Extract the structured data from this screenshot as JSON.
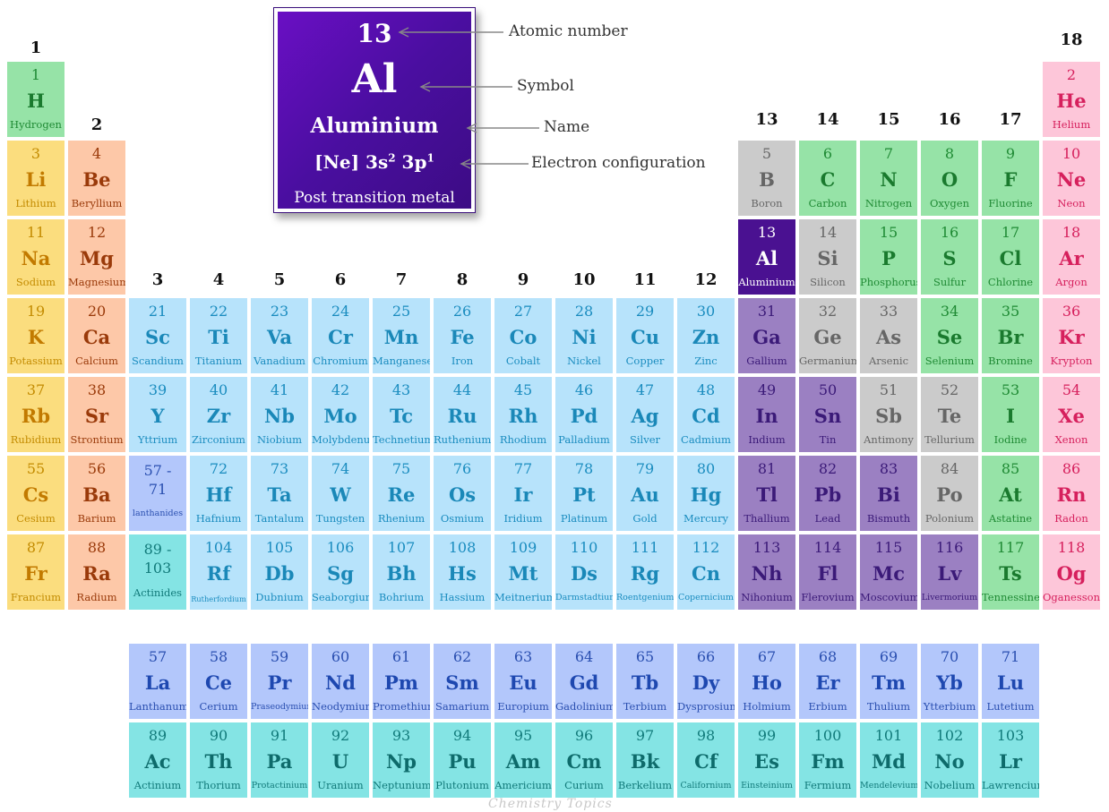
{
  "legend": {
    "number": "13",
    "symbol": "Al",
    "name": "Aluminium",
    "configuration_base": "[Ne] 3s",
    "configuration_sup1": "2",
    "configuration_mid": " 3p",
    "configuration_sup2": "1",
    "category": "Post transition metal",
    "callouts": {
      "number": "Atomic number",
      "symbol": "Symbol",
      "name": "Name",
      "configuration": "Electron configuration"
    }
  },
  "groups": [
    "1",
    "2",
    "3",
    "4",
    "5",
    "6",
    "7",
    "8",
    "9",
    "10",
    "11",
    "12",
    "13",
    "14",
    "15",
    "16",
    "17",
    "18"
  ],
  "watermark": "Chemistry Topics",
  "elements": [
    {
      "n": "1",
      "s": "H",
      "name": "Hydrogen",
      "c": "hydrogen",
      "col": 1,
      "row": 1
    },
    {
      "n": "2",
      "s": "He",
      "name": "Helium",
      "c": "noble",
      "col": 18,
      "row": 1
    },
    {
      "n": "3",
      "s": "Li",
      "name": "Lithium",
      "c": "alkali",
      "col": 1,
      "row": 2
    },
    {
      "n": "4",
      "s": "Be",
      "name": "Beryllium",
      "c": "alkaline",
      "col": 2,
      "row": 2
    },
    {
      "n": "5",
      "s": "B",
      "name": "Boron",
      "c": "metalloid",
      "col": 13,
      "row": 2
    },
    {
      "n": "6",
      "s": "C",
      "name": "Carbon",
      "c": "nonmetal",
      "col": 14,
      "row": 2
    },
    {
      "n": "7",
      "s": "N",
      "name": "Nitrogen",
      "c": "nonmetal",
      "col": 15,
      "row": 2
    },
    {
      "n": "8",
      "s": "O",
      "name": "Oxygen",
      "c": "nonmetal",
      "col": 16,
      "row": 2
    },
    {
      "n": "9",
      "s": "F",
      "name": "Fluorine",
      "c": "halogen",
      "col": 17,
      "row": 2
    },
    {
      "n": "10",
      "s": "Ne",
      "name": "Neon",
      "c": "noble",
      "col": 18,
      "row": 2
    },
    {
      "n": "11",
      "s": "Na",
      "name": "Sodium",
      "c": "alkali",
      "col": 1,
      "row": 3
    },
    {
      "n": "12",
      "s": "Mg",
      "name": "Magnesium",
      "c": "alkaline",
      "col": 2,
      "row": 3
    },
    {
      "n": "13",
      "s": "Al",
      "name": "Aluminium",
      "c": "highlight",
      "col": 13,
      "row": 3
    },
    {
      "n": "14",
      "s": "Si",
      "name": "Silicon",
      "c": "metalloid",
      "col": 14,
      "row": 3
    },
    {
      "n": "15",
      "s": "P",
      "name": "Phosphorus",
      "c": "nonmetal",
      "col": 15,
      "row": 3
    },
    {
      "n": "16",
      "s": "S",
      "name": "Sulfur",
      "c": "nonmetal",
      "col": 16,
      "row": 3
    },
    {
      "n": "17",
      "s": "Cl",
      "name": "Chlorine",
      "c": "halogen",
      "col": 17,
      "row": 3
    },
    {
      "n": "18",
      "s": "Ar",
      "name": "Argon",
      "c": "noble",
      "col": 18,
      "row": 3
    },
    {
      "n": "19",
      "s": "K",
      "name": "Potassium",
      "c": "alkali",
      "col": 1,
      "row": 4
    },
    {
      "n": "20",
      "s": "Ca",
      "name": "Calcium",
      "c": "alkaline",
      "col": 2,
      "row": 4
    },
    {
      "n": "21",
      "s": "Sc",
      "name": "Scandium",
      "c": "transition",
      "col": 3,
      "row": 4
    },
    {
      "n": "22",
      "s": "Ti",
      "name": "Titanium",
      "c": "transition",
      "col": 4,
      "row": 4
    },
    {
      "n": "23",
      "s": "Va",
      "name": "Vanadium",
      "c": "transition",
      "col": 5,
      "row": 4
    },
    {
      "n": "24",
      "s": "Cr",
      "name": "Chromium",
      "c": "transition",
      "col": 6,
      "row": 4
    },
    {
      "n": "25",
      "s": "Mn",
      "name": "Manganese",
      "c": "transition",
      "col": 7,
      "row": 4
    },
    {
      "n": "26",
      "s": "Fe",
      "name": "Iron",
      "c": "transition",
      "col": 8,
      "row": 4
    },
    {
      "n": "27",
      "s": "Co",
      "name": "Cobalt",
      "c": "transition",
      "col": 9,
      "row": 4
    },
    {
      "n": "28",
      "s": "Ni",
      "name": "Nickel",
      "c": "transition",
      "col": 10,
      "row": 4
    },
    {
      "n": "29",
      "s": "Cu",
      "name": "Copper",
      "c": "transition",
      "col": 11,
      "row": 4
    },
    {
      "n": "30",
      "s": "Zn",
      "name": "Zinc",
      "c": "transition",
      "col": 12,
      "row": 4
    },
    {
      "n": "31",
      "s": "Ga",
      "name": "Gallium",
      "c": "post",
      "col": 13,
      "row": 4
    },
    {
      "n": "32",
      "s": "Ge",
      "name": "Germanium",
      "c": "metalloid",
      "col": 14,
      "row": 4
    },
    {
      "n": "33",
      "s": "As",
      "name": "Arsenic",
      "c": "metalloid",
      "col": 15,
      "row": 4
    },
    {
      "n": "34",
      "s": "Se",
      "name": "Selenium",
      "c": "nonmetal",
      "col": 16,
      "row": 4
    },
    {
      "n": "35",
      "s": "Br",
      "name": "Bromine",
      "c": "halogen",
      "col": 17,
      "row": 4
    },
    {
      "n": "36",
      "s": "Kr",
      "name": "Krypton",
      "c": "noble",
      "col": 18,
      "row": 4
    },
    {
      "n": "37",
      "s": "Rb",
      "name": "Rubidium",
      "c": "alkali",
      "col": 1,
      "row": 5
    },
    {
      "n": "38",
      "s": "Sr",
      "name": "Strontium",
      "c": "alkaline",
      "col": 2,
      "row": 5
    },
    {
      "n": "39",
      "s": "Y",
      "name": "Yttrium",
      "c": "transition",
      "col": 3,
      "row": 5
    },
    {
      "n": "40",
      "s": "Zr",
      "name": "Zirconium",
      "c": "transition",
      "col": 4,
      "row": 5
    },
    {
      "n": "41",
      "s": "Nb",
      "name": "Niobium",
      "c": "transition",
      "col": 5,
      "row": 5
    },
    {
      "n": "42",
      "s": "Mo",
      "name": "Molybdenum",
      "c": "transition",
      "col": 6,
      "row": 5
    },
    {
      "n": "43",
      "s": "Tc",
      "name": "Technetium",
      "c": "transition",
      "col": 7,
      "row": 5
    },
    {
      "n": "44",
      "s": "Ru",
      "name": "Ruthenium",
      "c": "transition",
      "col": 8,
      "row": 5
    },
    {
      "n": "45",
      "s": "Rh",
      "name": "Rhodium",
      "c": "transition",
      "col": 9,
      "row": 5
    },
    {
      "n": "46",
      "s": "Pd",
      "name": "Palladium",
      "c": "transition",
      "col": 10,
      "row": 5
    },
    {
      "n": "47",
      "s": "Ag",
      "name": "Silver",
      "c": "transition",
      "col": 11,
      "row": 5
    },
    {
      "n": "48",
      "s": "Cd",
      "name": "Cadmium",
      "c": "transition",
      "col": 12,
      "row": 5
    },
    {
      "n": "49",
      "s": "In",
      "name": "Indium",
      "c": "post",
      "col": 13,
      "row": 5
    },
    {
      "n": "50",
      "s": "Sn",
      "name": "Tin",
      "c": "post",
      "col": 14,
      "row": 5
    },
    {
      "n": "51",
      "s": "Sb",
      "name": "Antimony",
      "c": "metalloid",
      "col": 15,
      "row": 5
    },
    {
      "n": "52",
      "s": "Te",
      "name": "Tellurium",
      "c": "metalloid",
      "col": 16,
      "row": 5
    },
    {
      "n": "53",
      "s": "I",
      "name": "Iodine",
      "c": "halogen",
      "col": 17,
      "row": 5
    },
    {
      "n": "54",
      "s": "Xe",
      "name": "Xenon",
      "c": "noble",
      "col": 18,
      "row": 5
    },
    {
      "n": "55",
      "s": "Cs",
      "name": "Cesium",
      "c": "alkali",
      "col": 1,
      "row": 6
    },
    {
      "n": "56",
      "s": "Ba",
      "name": "Barium",
      "c": "alkaline",
      "col": 2,
      "row": 6
    },
    {
      "n": "57 -\n71",
      "s": "",
      "name": "lanthanides",
      "c": "lanthanide",
      "col": 3,
      "row": 6,
      "range": true
    },
    {
      "n": "72",
      "s": "Hf",
      "name": "Hafnium",
      "c": "transition",
      "col": 4,
      "row": 6
    },
    {
      "n": "73",
      "s": "Ta",
      "name": "Tantalum",
      "c": "transition",
      "col": 5,
      "row": 6
    },
    {
      "n": "74",
      "s": "W",
      "name": "Tungsten",
      "c": "transition",
      "col": 6,
      "row": 6
    },
    {
      "n": "75",
      "s": "Re",
      "name": "Rhenium",
      "c": "transition",
      "col": 7,
      "row": 6
    },
    {
      "n": "76",
      "s": "Os",
      "name": "Osmium",
      "c": "transition",
      "col": 8,
      "row": 6
    },
    {
      "n": "77",
      "s": "Ir",
      "name": "Iridium",
      "c": "transition",
      "col": 9,
      "row": 6
    },
    {
      "n": "78",
      "s": "Pt",
      "name": "Platinum",
      "c": "transition",
      "col": 10,
      "row": 6
    },
    {
      "n": "79",
      "s": "Au",
      "name": "Gold",
      "c": "transition",
      "col": 11,
      "row": 6
    },
    {
      "n": "80",
      "s": "Hg",
      "name": "Mercury",
      "c": "transition",
      "col": 12,
      "row": 6
    },
    {
      "n": "81",
      "s": "Tl",
      "name": "Thallium",
      "c": "post",
      "col": 13,
      "row": 6
    },
    {
      "n": "82",
      "s": "Pb",
      "name": "Lead",
      "c": "post",
      "col": 14,
      "row": 6
    },
    {
      "n": "83",
      "s": "Bi",
      "name": "Bismuth",
      "c": "post",
      "col": 15,
      "row": 6
    },
    {
      "n": "84",
      "s": "Po",
      "name": "Polonium",
      "c": "metalloid",
      "col": 16,
      "row": 6
    },
    {
      "n": "85",
      "s": "At",
      "name": "Astatine",
      "c": "halogen",
      "col": 17,
      "row": 6
    },
    {
      "n": "86",
      "s": "Rn",
      "name": "Radon",
      "c": "noble",
      "col": 18,
      "row": 6
    },
    {
      "n": "87",
      "s": "Fr",
      "name": "Francium",
      "c": "alkali",
      "col": 1,
      "row": 7
    },
    {
      "n": "88",
      "s": "Ra",
      "name": "Radium",
      "c": "alkaline",
      "col": 2,
      "row": 7
    },
    {
      "n": "89 -\n103",
      "s": "",
      "name": "Actinides",
      "c": "actinide",
      "col": 3,
      "row": 7,
      "range": true
    },
    {
      "n": "104",
      "s": "Rf",
      "name": "Rutherfordium",
      "c": "transition",
      "col": 4,
      "row": 7
    },
    {
      "n": "105",
      "s": "Db",
      "name": "Dubnium",
      "c": "transition",
      "col": 5,
      "row": 7
    },
    {
      "n": "106",
      "s": "Sg",
      "name": "Seaborgium",
      "c": "transition",
      "col": 6,
      "row": 7
    },
    {
      "n": "107",
      "s": "Bh",
      "name": "Bohrium",
      "c": "transition",
      "col": 7,
      "row": 7
    },
    {
      "n": "108",
      "s": "Hs",
      "name": "Hassium",
      "c": "transition",
      "col": 8,
      "row": 7
    },
    {
      "n": "109",
      "s": "Mt",
      "name": "Meitnerium",
      "c": "transition",
      "col": 9,
      "row": 7
    },
    {
      "n": "110",
      "s": "Ds",
      "name": "Darmstadtium",
      "c": "transition",
      "col": 10,
      "row": 7
    },
    {
      "n": "111",
      "s": "Rg",
      "name": "Roentgenium",
      "c": "transition",
      "col": 11,
      "row": 7
    },
    {
      "n": "112",
      "s": "Cn",
      "name": "Copernicium",
      "c": "transition",
      "col": 12,
      "row": 7
    },
    {
      "n": "113",
      "s": "Nh",
      "name": "Nihonium",
      "c": "post",
      "col": 13,
      "row": 7
    },
    {
      "n": "114",
      "s": "Fl",
      "name": "Flerovium",
      "c": "post",
      "col": 14,
      "row": 7
    },
    {
      "n": "115",
      "s": "Mc",
      "name": "Moscovium",
      "c": "post",
      "col": 15,
      "row": 7
    },
    {
      "n": "116",
      "s": "Lv",
      "name": "Livermorium",
      "c": "post",
      "col": 16,
      "row": 7
    },
    {
      "n": "117",
      "s": "Ts",
      "name": "Tennessine",
      "c": "halogen",
      "col": 17,
      "row": 7
    },
    {
      "n": "118",
      "s": "Og",
      "name": "Oganesson",
      "c": "noble",
      "col": 18,
      "row": 7
    },
    {
      "n": "57",
      "s": "La",
      "name": "Lanthanum",
      "c": "lanthanide",
      "col": 3,
      "row": 8
    },
    {
      "n": "58",
      "s": "Ce",
      "name": "Cerium",
      "c": "lanthanide",
      "col": 4,
      "row": 8
    },
    {
      "n": "59",
      "s": "Pr",
      "name": "Praseodymium",
      "c": "lanthanide",
      "col": 5,
      "row": 8
    },
    {
      "n": "60",
      "s": "Nd",
      "name": "Neodymium",
      "c": "lanthanide",
      "col": 6,
      "row": 8
    },
    {
      "n": "61",
      "s": "Pm",
      "name": "Promethium",
      "c": "lanthanide",
      "col": 7,
      "row": 8
    },
    {
      "n": "62",
      "s": "Sm",
      "name": "Samarium",
      "c": "lanthanide",
      "col": 8,
      "row": 8
    },
    {
      "n": "63",
      "s": "Eu",
      "name": "Europium",
      "c": "lanthanide",
      "col": 9,
      "row": 8
    },
    {
      "n": "64",
      "s": "Gd",
      "name": "Gadolinium",
      "c": "lanthanide",
      "col": 10,
      "row": 8
    },
    {
      "n": "65",
      "s": "Tb",
      "name": "Terbium",
      "c": "lanthanide",
      "col": 11,
      "row": 8
    },
    {
      "n": "66",
      "s": "Dy",
      "name": "Dysprosium",
      "c": "lanthanide",
      "col": 12,
      "row": 8
    },
    {
      "n": "67",
      "s": "Ho",
      "name": "Holmium",
      "c": "lanthanide",
      "col": 13,
      "row": 8
    },
    {
      "n": "68",
      "s": "Er",
      "name": "Erbium",
      "c": "lanthanide",
      "col": 14,
      "row": 8
    },
    {
      "n": "69",
      "s": "Tm",
      "name": "Thulium",
      "c": "lanthanide",
      "col": 15,
      "row": 8
    },
    {
      "n": "70",
      "s": "Yb",
      "name": "Ytterbium",
      "c": "lanthanide",
      "col": 16,
      "row": 8
    },
    {
      "n": "71",
      "s": "Lu",
      "name": "Lutetium",
      "c": "lanthanide",
      "col": 17,
      "row": 8
    },
    {
      "n": "89",
      "s": "Ac",
      "name": "Actinium",
      "c": "actinide",
      "col": 3,
      "row": 9
    },
    {
      "n": "90",
      "s": "Th",
      "name": "Thorium",
      "c": "actinide",
      "col": 4,
      "row": 9
    },
    {
      "n": "91",
      "s": "Pa",
      "name": "Protactinium",
      "c": "actinide",
      "col": 5,
      "row": 9
    },
    {
      "n": "92",
      "s": "U",
      "name": "Uranium",
      "c": "actinide",
      "col": 6,
      "row": 9
    },
    {
      "n": "93",
      "s": "Np",
      "name": "Neptunium",
      "c": "actinide",
      "col": 7,
      "row": 9
    },
    {
      "n": "94",
      "s": "Pu",
      "name": "Plutonium",
      "c": "actinide",
      "col": 8,
      "row": 9
    },
    {
      "n": "95",
      "s": "Am",
      "name": "Americium",
      "c": "actinide",
      "col": 9,
      "row": 9
    },
    {
      "n": "96",
      "s": "Cm",
      "name": "Curium",
      "c": "actinide",
      "col": 10,
      "row": 9
    },
    {
      "n": "97",
      "s": "Bk",
      "name": "Berkelium",
      "c": "actinide",
      "col": 11,
      "row": 9
    },
    {
      "n": "98",
      "s": "Cf",
      "name": "Californium",
      "c": "actinide",
      "col": 12,
      "row": 9
    },
    {
      "n": "99",
      "s": "Es",
      "name": "Einsteinium",
      "c": "actinide",
      "col": 13,
      "row": 9
    },
    {
      "n": "100",
      "s": "Fm",
      "name": "Fermium",
      "c": "actinide",
      "col": 14,
      "row": 9
    },
    {
      "n": "101",
      "s": "Md",
      "name": "Mendelevium",
      "c": "actinide",
      "col": 15,
      "row": 9
    },
    {
      "n": "102",
      "s": "No",
      "name": "Nobelium",
      "c": "actinide",
      "col": 16,
      "row": 9
    },
    {
      "n": "103",
      "s": "Lr",
      "name": "Lawrencium",
      "c": "actinide",
      "col": 17,
      "row": 9
    }
  ]
}
